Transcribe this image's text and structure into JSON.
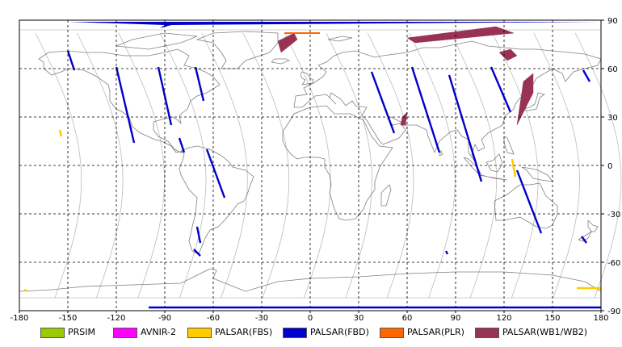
{
  "map": {
    "x_ticks": [
      "-180",
      "-150",
      "-120",
      "-90",
      "-60",
      "-30",
      "0",
      "30",
      "60",
      "90",
      "120",
      "150",
      "180"
    ],
    "y_ticks": [
      "90",
      "60",
      "30",
      "0",
      "-30",
      "-60",
      "-90"
    ],
    "lon_range": [
      -180,
      180
    ],
    "lat_range": [
      -90,
      90
    ],
    "grid": "dashed",
    "colors": {
      "land_outline": "#808080",
      "orbit_track": "#c0c0c0",
      "grid": "#000000"
    }
  },
  "legend": [
    {
      "label": "PRSIM",
      "color": "#99cc00"
    },
    {
      "label": "AVNIR-2",
      "color": "#ff00ff"
    },
    {
      "label": "PALSAR(FBS)",
      "color": "#ffcc00"
    },
    {
      "label": "PALSAR(FBD)",
      "color": "#0000cc"
    },
    {
      "label": "PALSAR(PLR)",
      "color": "#ff6600"
    },
    {
      "label": "PALSAR(WB1/WB2)",
      "color": "#993355"
    }
  ],
  "chart_data": {
    "type": "map",
    "x_axis": {
      "min": -180,
      "max": 180,
      "ticks": [
        -180,
        -150,
        -120,
        -90,
        -60,
        -30,
        0,
        30,
        60,
        90,
        120,
        150,
        180
      ]
    },
    "y_axis": {
      "min": -90,
      "max": 90,
      "ticks": [
        90,
        60,
        30,
        0,
        -30,
        -60,
        -90
      ]
    },
    "grid": true,
    "legend_position": "bottom",
    "fbd_strips": [
      [
        [
          -150,
          71
        ],
        [
          -146,
          59
        ]
      ],
      [
        [
          -120,
          61
        ],
        [
          -109,
          14
        ]
      ],
      [
        [
          -94,
          61
        ],
        [
          -86,
          25
        ]
      ],
      [
        [
          -71,
          61
        ],
        [
          -66,
          40
        ]
      ],
      [
        [
          -81,
          17
        ],
        [
          -78,
          8
        ]
      ],
      [
        [
          -64,
          10
        ],
        [
          -53,
          -20
        ]
      ],
      [
        [
          -70,
          -38
        ],
        [
          -68,
          -48
        ]
      ],
      [
        [
          -72,
          -52
        ],
        [
          -68,
          -56
        ]
      ],
      [
        [
          38,
          58
        ],
        [
          52,
          20
        ]
      ],
      [
        [
          63,
          61
        ],
        [
          80,
          8
        ]
      ],
      [
        [
          86,
          56
        ],
        [
          106,
          -10
        ]
      ],
      [
        [
          112,
          61
        ],
        [
          124,
          33
        ]
      ],
      [
        [
          128,
          -3
        ],
        [
          143,
          -42
        ]
      ],
      [
        [
          84,
          -53
        ],
        [
          85,
          -55
        ]
      ],
      [
        [
          169,
          59
        ],
        [
          173,
          52
        ]
      ],
      [
        [
          168,
          -44
        ],
        [
          171,
          -48
        ]
      ],
      [
        [
          -100,
          -88
        ],
        [
          180,
          -88
        ]
      ]
    ],
    "wb_strips": [
      [
        [
          -20,
          77
        ],
        [
          -18,
          70
        ],
        [
          -8,
          78
        ],
        [
          -10,
          82
        ]
      ],
      [
        [
          60,
          79
        ],
        [
          115,
          86
        ],
        [
          126,
          82
        ],
        [
          65,
          76
        ]
      ],
      [
        [
          117,
          70
        ],
        [
          124,
          72
        ],
        [
          128,
          68
        ],
        [
          122,
          65
        ]
      ],
      [
        [
          132,
          52
        ],
        [
          138,
          57
        ],
        [
          138,
          45
        ],
        [
          128,
          25
        ]
      ],
      [
        [
          57,
          30
        ],
        [
          60,
          33
        ],
        [
          59,
          25
        ],
        [
          56,
          25
        ]
      ]
    ],
    "fbs_strips": [
      [
        [
          125,
          4
        ],
        [
          127,
          -7
        ]
      ],
      [
        [
          -177,
          -77
        ],
        [
          -175,
          -78
        ]
      ],
      [
        [
          165,
          -76
        ],
        [
          180,
          -76
        ]
      ],
      [
        [
          -155,
          22
        ],
        [
          -154,
          18
        ]
      ]
    ],
    "plr_strips": [
      [
        [
          -16,
          82
        ],
        [
          6,
          82
        ]
      ]
    ]
  }
}
